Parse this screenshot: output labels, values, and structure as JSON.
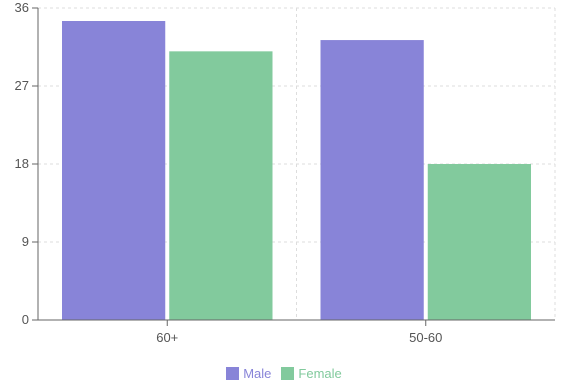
{
  "chart_data": {
    "type": "bar",
    "categories": [
      "60+",
      "50-60"
    ],
    "series": [
      {
        "name": "Male",
        "values": [
          34.5,
          32.3
        ],
        "color": "#8884d8"
      },
      {
        "name": "Female",
        "values": [
          31.0,
          18.0
        ],
        "color": "#82ca9d"
      }
    ],
    "ylim": [
      0,
      36
    ],
    "yticks": [
      "0",
      "9",
      "18",
      "27",
      "36"
    ],
    "grid": true,
    "legend": "bottom-center"
  }
}
